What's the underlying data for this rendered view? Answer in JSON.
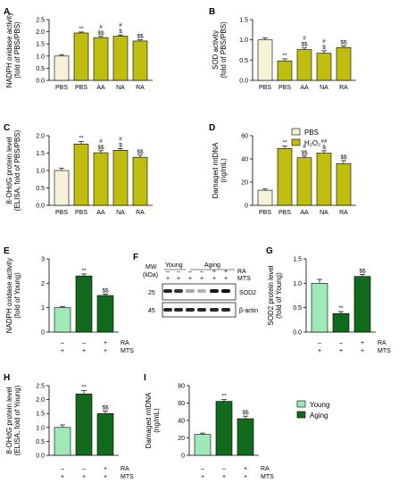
{
  "chart_data": [
    {
      "panel": "A",
      "type": "bar",
      "ylabel": [
        "NADPH oxidase activity",
        "(fold of PBS/PBS)"
      ],
      "yticks": [
        0.0,
        0.5,
        1.0,
        1.5,
        2.0,
        2.5
      ],
      "ylim": [
        0,
        2.5
      ],
      "categories": [
        "PBS",
        "PBS",
        "AA",
        "NA",
        "RA"
      ],
      "values": [
        1.0,
        1.95,
        1.76,
        1.82,
        1.62
      ],
      "errors": [
        0.06,
        0.04,
        0.05,
        0.05,
        0.05
      ],
      "colors": [
        "#f5f2d8",
        "#bfbd0e",
        "#bfbd0e",
        "#bfbd0e",
        "#bfbd0e"
      ],
      "annotations": [
        [],
        [
          "**"
        ],
        [
          "#",
          "$$"
        ],
        [
          "#",
          "$"
        ],
        [
          "$$"
        ]
      ]
    },
    {
      "panel": "B",
      "type": "bar",
      "ylabel": [
        "SOD activity",
        "(fold of PBS/PBS)"
      ],
      "yticks": [
        0.0,
        0.5,
        1.0,
        1.5
      ],
      "ylim": [
        0,
        1.5
      ],
      "categories": [
        "PBS",
        "PBS",
        "AA",
        "NA",
        "RA"
      ],
      "values": [
        1.0,
        0.48,
        0.76,
        0.67,
        0.81
      ],
      "errors": [
        0.05,
        0.05,
        0.04,
        0.06,
        0.04
      ],
      "colors": [
        "#f5f2d8",
        "#bfbd0e",
        "#bfbd0e",
        "#bfbd0e",
        "#bfbd0e"
      ],
      "annotations": [
        [],
        [
          "**"
        ],
        [
          "#",
          "$$"
        ],
        [
          "#",
          "$"
        ],
        [
          "$$"
        ]
      ]
    },
    {
      "panel": "C",
      "type": "bar",
      "ylabel": [
        "8-OHdG protein level",
        "(ELISA, fold of PBS/PBS)"
      ],
      "yticks": [
        0.0,
        0.5,
        1.0,
        1.5,
        2.0
      ],
      "ylim": [
        0,
        2.0
      ],
      "categories": [
        "PBS",
        "PBS",
        "AA",
        "NA",
        "RA"
      ],
      "values": [
        1.0,
        1.76,
        1.51,
        1.58,
        1.38
      ],
      "errors": [
        0.07,
        0.07,
        0.06,
        0.05,
        0.06
      ],
      "colors": [
        "#f5f2d8",
        "#bfbd0e",
        "#bfbd0e",
        "#bfbd0e",
        "#bfbd0e"
      ],
      "annotations": [
        [],
        [
          "**"
        ],
        [
          "#",
          "$$"
        ],
        [
          "#",
          "$"
        ],
        [
          "$$"
        ]
      ]
    },
    {
      "panel": "D",
      "type": "bar",
      "ylabel": [
        "Damaged mtDNA",
        "(ng/mL)"
      ],
      "yticks": [
        0,
        20,
        40,
        60
      ],
      "ylim": [
        0,
        60
      ],
      "categories": [
        "PBS",
        "PBS",
        "AA",
        "NA",
        "RA"
      ],
      "values": [
        13,
        49,
        41,
        45,
        36
      ],
      "errors": [
        1.0,
        2.0,
        1.5,
        2.0,
        2.5
      ],
      "colors": [
        "#f5f2d8",
        "#bfbd0e",
        "#bfbd0e",
        "#bfbd0e",
        "#bfbd0e"
      ],
      "annotations": [
        [],
        [
          "**"
        ],
        [
          "#",
          "$$"
        ],
        [
          "##",
          "$"
        ],
        [
          "$$"
        ]
      ]
    },
    {
      "panel": "E",
      "type": "bar",
      "ylabel": [
        "NADPH oxidase activity",
        "(fold of Young)"
      ],
      "yticks": [
        0,
        1,
        2,
        3
      ],
      "ylim": [
        0,
        3
      ],
      "row_labels": [
        "RA",
        "MTS"
      ],
      "row_values": [
        [
          "–",
          "–",
          "+"
        ],
        [
          "+",
          "+",
          "+"
        ]
      ],
      "values": [
        1.0,
        2.3,
        1.5
      ],
      "errors": [
        0.05,
        0.08,
        0.06
      ],
      "colors": [
        "#9fe8b8",
        "#126b1c",
        "#126b1c"
      ],
      "annotations": [
        [],
        [
          "**"
        ],
        [
          "$$"
        ]
      ]
    },
    {
      "panel": "G",
      "type": "bar",
      "ylabel": [
        "SOD2 protein level",
        "(fold of Young)"
      ],
      "yticks": [
        0.0,
        0.5,
        1.0,
        1.5
      ],
      "ylim": [
        0,
        1.5
      ],
      "row_labels": [
        "RA",
        "MTS"
      ],
      "row_values": [
        [
          "–",
          "–",
          "+"
        ],
        [
          "+",
          "+",
          "+"
        ]
      ],
      "values": [
        1.0,
        0.38,
        1.14
      ],
      "errors": [
        0.08,
        0.04,
        0.04
      ],
      "colors": [
        "#9fe8b8",
        "#126b1c",
        "#126b1c"
      ],
      "annotations": [
        [],
        [
          "**"
        ],
        [
          "$$"
        ]
      ]
    },
    {
      "panel": "H",
      "type": "bar",
      "ylabel": [
        "8-OHdG protein level",
        "(ELISA, fold of Young)"
      ],
      "yticks": [
        0.0,
        0.5,
        1.0,
        1.5,
        2.0,
        2.5
      ],
      "ylim": [
        0,
        2.5
      ],
      "row_labels": [
        "RA",
        "MTS"
      ],
      "row_values": [
        [
          "–",
          "–",
          "+"
        ],
        [
          "+",
          "+",
          "+"
        ]
      ],
      "values": [
        1.0,
        2.2,
        1.5
      ],
      "errors": [
        0.09,
        0.12,
        0.09
      ],
      "colors": [
        "#9fe8b8",
        "#126b1c",
        "#126b1c"
      ],
      "annotations": [
        [],
        [
          "**"
        ],
        [
          "$$"
        ]
      ]
    },
    {
      "panel": "I",
      "type": "bar",
      "ylabel": [
        "Damaged mtDNA",
        "(ng/mL)"
      ],
      "yticks": [
        0,
        20,
        40,
        60,
        80
      ],
      "ylim": [
        0,
        80
      ],
      "row_labels": [
        "RA",
        "MTS"
      ],
      "row_values": [
        [
          "–",
          "–",
          "+"
        ],
        [
          "+",
          "+",
          "+"
        ]
      ],
      "values": [
        24,
        62,
        42
      ],
      "errors": [
        1.5,
        2.0,
        3.0
      ],
      "colors": [
        "#9fe8b8",
        "#126b1c",
        "#126b1c"
      ],
      "annotations": [
        [],
        [
          "**"
        ],
        [
          "$$"
        ]
      ]
    }
  ],
  "legend_top": [
    {
      "label": "PBS",
      "color": "#f5f2d8"
    },
    {
      "label": "H₂O₂",
      "color": "#bfbd0e"
    }
  ],
  "legend_bottom": [
    {
      "label": "Young",
      "color": "#9fe8b8"
    },
    {
      "label": "Aging",
      "color": "#126b1c"
    }
  ],
  "blot": {
    "panel": "F",
    "mw_label": [
      "MW",
      "(kDa)"
    ],
    "group_labels": [
      "Young",
      "Aging"
    ],
    "row_labels": [
      "RA",
      "MTS"
    ],
    "row_values": [
      [
        "–",
        "–",
        "–",
        "–",
        "+",
        "+"
      ],
      [
        "+",
        "+",
        "+",
        "+",
        "+",
        "+"
      ]
    ],
    "bands": [
      {
        "mw": "25",
        "name": "SOD2"
      },
      {
        "mw": "45",
        "name": "β-actin"
      }
    ]
  }
}
